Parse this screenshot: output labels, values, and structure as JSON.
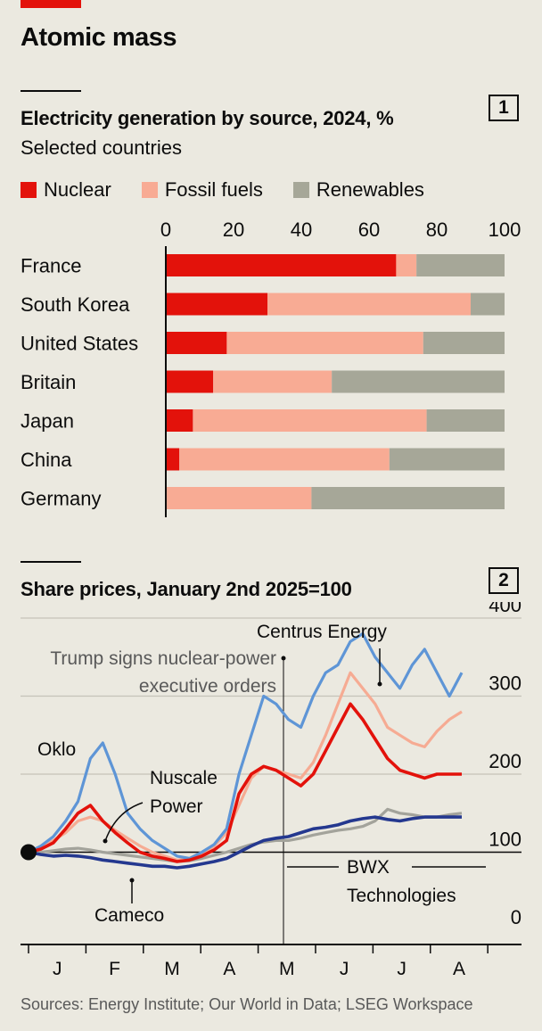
{
  "title": "Atomic mass",
  "sources": "Sources: Energy Institute; Our World in Data; LSEG Workspace",
  "colors": {
    "nuclear": "#e3120b",
    "fossil": "#f8ab94",
    "renewables": "#a6a798",
    "oklo": "#5e95d6",
    "nuscale": "#e3120b",
    "centrus": "#f6ab93",
    "bwx": "#a3a39b",
    "cameco": "#24388f"
  },
  "chart_data": [
    {
      "type": "bar",
      "stacked": true,
      "orientation": "horizontal",
      "number": "1",
      "title": "Electricity generation by source, 2024, %",
      "subtitle": "Selected countries",
      "categories": [
        "France",
        "South Korea",
        "United States",
        "Britain",
        "Japan",
        "China",
        "Germany"
      ],
      "series": [
        {
          "name": "Nuclear",
          "values": [
            68,
            30,
            18,
            14,
            8,
            4,
            0
          ]
        },
        {
          "name": "Fossil fuels",
          "values": [
            6,
            60,
            58,
            35,
            69,
            62,
            43
          ]
        },
        {
          "name": "Renewables",
          "values": [
            26,
            10,
            24,
            51,
            23,
            34,
            57
          ]
        }
      ],
      "xlim": [
        0,
        100
      ],
      "xticks": [
        "0",
        "20",
        "40",
        "60",
        "80",
        "100"
      ],
      "legend": "top"
    },
    {
      "type": "line",
      "number": "2",
      "title": "Share prices, January 2nd 2025=100",
      "x_unit": "week of 2025",
      "x_start": "2025-01-02",
      "x": [
        0,
        1,
        2,
        3,
        4,
        5,
        6,
        7,
        8,
        9,
        10,
        11,
        12,
        13,
        14,
        15,
        16,
        17,
        18,
        19,
        20,
        21,
        22,
        23,
        24,
        25,
        26,
        27,
        28,
        29,
        30,
        31,
        32,
        33,
        34,
        35
      ],
      "x_months": [
        "J",
        "F",
        "M",
        "A",
        "M",
        "J",
        "J",
        "A"
      ],
      "ylim": [
        0,
        400
      ],
      "yticks": [
        "0",
        "100",
        "200",
        "300",
        "400"
      ],
      "series": [
        {
          "name": "Oklo",
          "values": [
            100,
            108,
            120,
            140,
            165,
            220,
            240,
            200,
            150,
            130,
            115,
            105,
            95,
            92,
            100,
            110,
            130,
            200,
            250,
            300,
            290,
            270,
            260,
            300,
            330,
            340,
            370,
            380,
            350,
            330,
            310,
            340,
            360,
            330,
            300,
            330
          ]
        },
        {
          "name": "Nuscale Power",
          "values": [
            100,
            104,
            112,
            130,
            150,
            160,
            140,
            125,
            112,
            100,
            95,
            92,
            88,
            90,
            95,
            103,
            115,
            175,
            200,
            210,
            205,
            195,
            185,
            200,
            230,
            260,
            290,
            270,
            245,
            220,
            205,
            200,
            195,
            200,
            200,
            200
          ]
        },
        {
          "name": "Centrus Energy",
          "values": [
            100,
            105,
            115,
            125,
            140,
            145,
            140,
            128,
            118,
            108,
            100,
            95,
            90,
            92,
            98,
            108,
            125,
            160,
            195,
            210,
            205,
            200,
            195,
            215,
            250,
            290,
            330,
            310,
            290,
            260,
            250,
            240,
            235,
            255,
            270,
            280
          ]
        },
        {
          "name": "BWX Technologies",
          "values": [
            100,
            100,
            102,
            104,
            105,
            103,
            100,
            98,
            96,
            94,
            92,
            90,
            88,
            89,
            92,
            96,
            100,
            105,
            110,
            113,
            115,
            115,
            118,
            122,
            125,
            128,
            130,
            133,
            140,
            155,
            150,
            148,
            145,
            145,
            148,
            150
          ]
        },
        {
          "name": "Cameco",
          "values": [
            100,
            97,
            95,
            96,
            95,
            93,
            90,
            88,
            86,
            84,
            82,
            82,
            80,
            82,
            85,
            88,
            92,
            100,
            108,
            115,
            118,
            120,
            125,
            130,
            132,
            135,
            140,
            143,
            145,
            142,
            140,
            143,
            145,
            145,
            145,
            145
          ]
        }
      ],
      "annotations": [
        "Trump signs nuclear-power executive orders"
      ]
    }
  ]
}
